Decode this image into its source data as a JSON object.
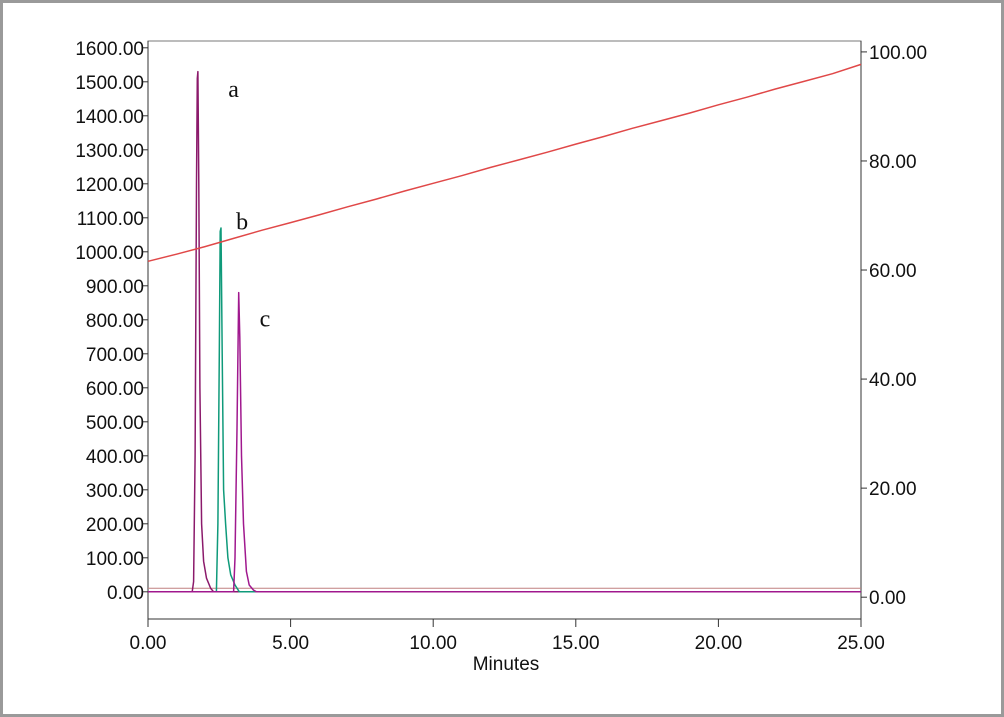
{
  "chart_data": {
    "type": "line",
    "xlabel": "Minutes",
    "x_ticks": [
      "0.00",
      "5.00",
      "10.00",
      "15.00",
      "20.00",
      "25.00"
    ],
    "xlim": [
      0,
      25
    ],
    "y_left_ticks": [
      "0.00",
      "100.00",
      "200.00",
      "300.00",
      "400.00",
      "500.00",
      "600.00",
      "700.00",
      "800.00",
      "900.00",
      "1000.00",
      "1100.00",
      "1200.00",
      "1300.00",
      "1400.00",
      "1500.00",
      "1600.00"
    ],
    "ylim_left": [
      -80,
      1620
    ],
    "y_right_ticks": [
      "0.00",
      "20.00",
      "40.00",
      "60.00",
      "80.00",
      "100.00"
    ],
    "ylim_right": [
      -4,
      102
    ],
    "grid": false,
    "annotations": [
      {
        "text": "a",
        "x": 3.0,
        "y": 1455
      },
      {
        "text": "b",
        "x": 3.3,
        "y": 1065
      },
      {
        "text": "c",
        "x": 4.1,
        "y": 780
      }
    ],
    "series": [
      {
        "color": "#8b1a6b",
        "axis": "left",
        "x": [
          0.0,
          1.55,
          1.6,
          1.65,
          1.7,
          1.73,
          1.75,
          1.78,
          1.82,
          1.88,
          1.95,
          2.05,
          2.2,
          2.3,
          25.0
        ],
        "y": [
          0,
          0,
          30,
          400,
          1200,
          1510,
          1530,
          1200,
          600,
          200,
          90,
          40,
          10,
          0,
          0
        ]
      },
      {
        "color": "#0f9a7a",
        "axis": "left",
        "x": [
          0.0,
          2.4,
          2.45,
          2.5,
          2.53,
          2.56,
          2.6,
          2.65,
          2.72,
          2.8,
          2.9,
          3.05,
          3.2,
          25.0
        ],
        "y": [
          0,
          0,
          200,
          700,
          1060,
          1070,
          700,
          300,
          200,
          100,
          50,
          20,
          0,
          0
        ]
      },
      {
        "color": "#a0188e",
        "axis": "left",
        "x": [
          0.0,
          3.0,
          3.05,
          3.12,
          3.18,
          3.22,
          3.28,
          3.35,
          3.45,
          3.55,
          3.7,
          3.8,
          25.0
        ],
        "y": [
          0,
          0,
          100,
          480,
          880,
          750,
          400,
          200,
          60,
          20,
          5,
          0,
          0
        ]
      },
      {
        "color": "#e04848",
        "axis": "right",
        "x": [
          0,
          1,
          2,
          3,
          4,
          5,
          6,
          7,
          8,
          9,
          10,
          11,
          12,
          13,
          14,
          15,
          16,
          17,
          18,
          19,
          20,
          21,
          22,
          23,
          24,
          25
        ],
        "y": [
          61.6,
          62.9,
          64.3,
          65.8,
          67.3,
          68.7,
          70.1,
          71.6,
          73.0,
          74.5,
          75.9,
          77.3,
          78.8,
          80.2,
          81.6,
          83.1,
          84.5,
          86.0,
          87.4,
          88.8,
          90.3,
          91.7,
          93.2,
          94.6,
          96.0,
          97.7
        ]
      }
    ]
  }
}
